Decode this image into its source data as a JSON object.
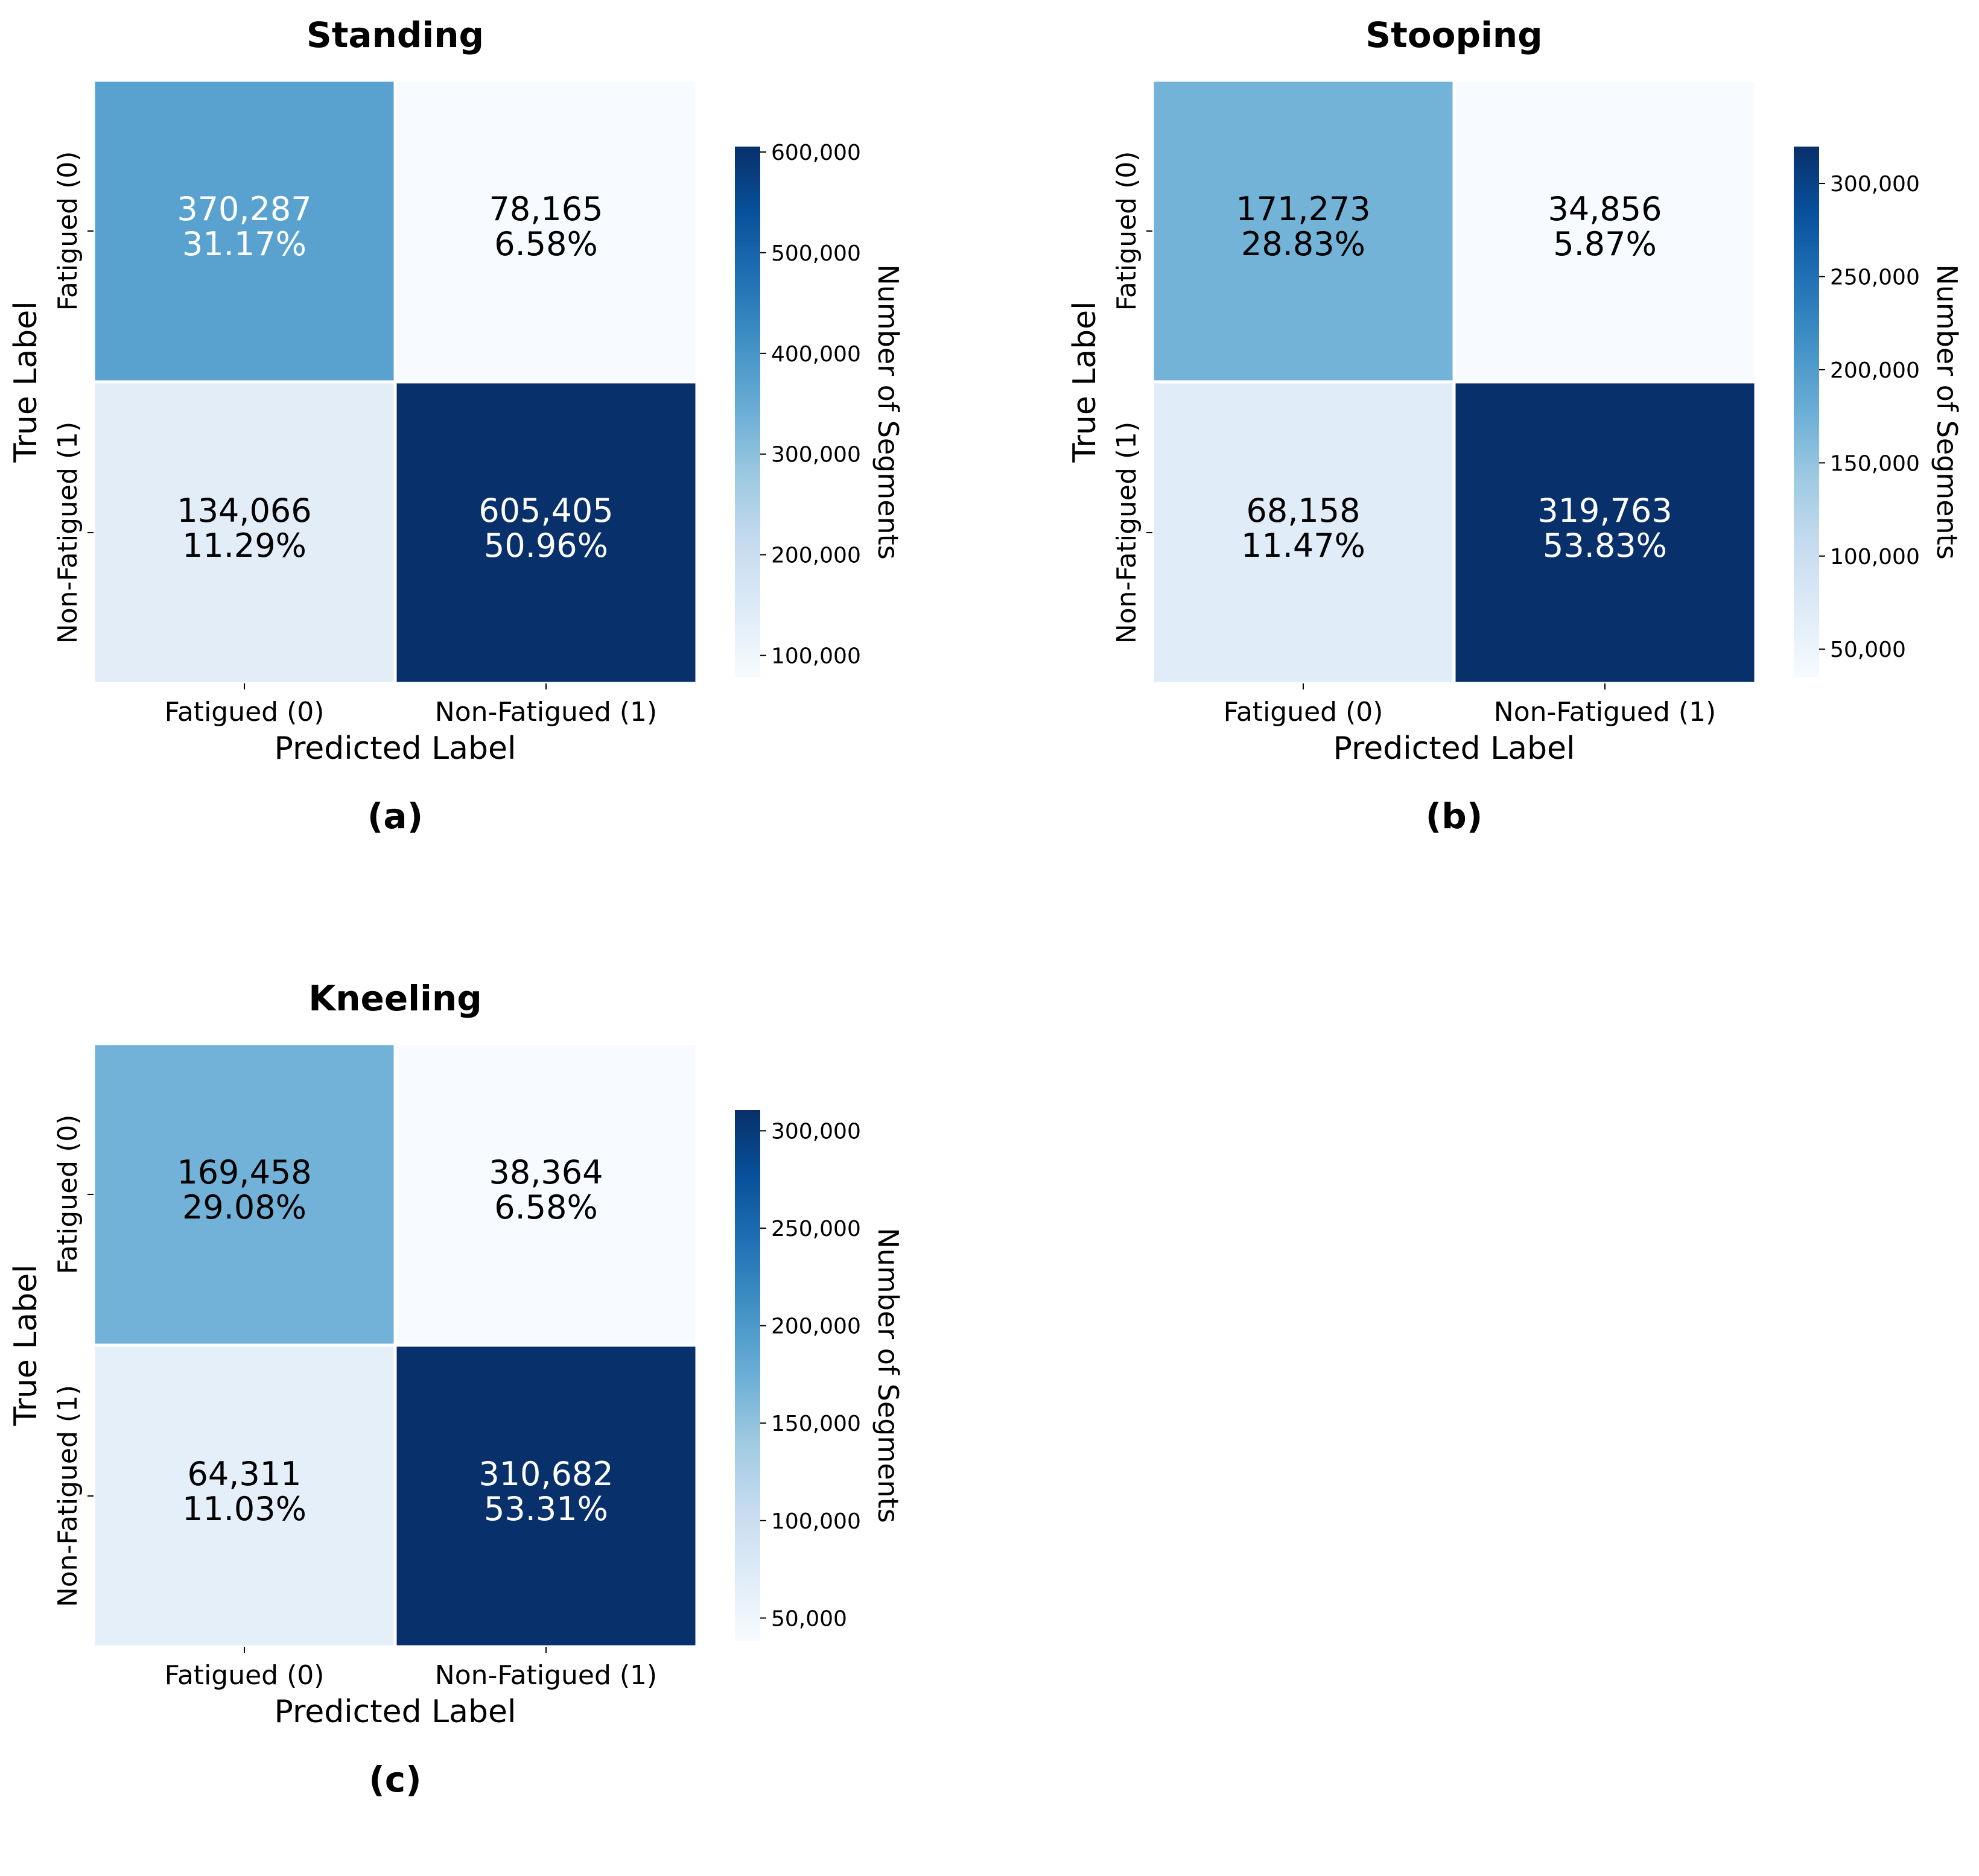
{
  "chart_data": [
    {
      "type": "heatmap",
      "title": "Standing",
      "panel": "(a)",
      "xlabel": "Predicted Label",
      "ylabel": "True Label",
      "x_categories": [
        "Fatigued (0)",
        "Non-Fatigued (1)"
      ],
      "y_categories": [
        "Fatigued (0)",
        "Non-Fatigued (1)"
      ],
      "values": [
        [
          370287,
          78165
        ],
        [
          134066,
          605405
        ]
      ],
      "counts": [
        [
          "370,287",
          "78,165"
        ],
        [
          "134,066",
          "605,405"
        ]
      ],
      "percentages": [
        [
          "31.17%",
          "6.58%"
        ],
        [
          "11.29%",
          "50.96%"
        ]
      ],
      "colorbar": {
        "label": "Number of Segments",
        "range": [
          78165,
          605405
        ],
        "ticks": [
          100000,
          200000,
          300000,
          400000,
          500000,
          600000
        ],
        "tick_labels": [
          "100,000",
          "200,000",
          "300,000",
          "400,000",
          "500,000",
          "600,000"
        ],
        "colormap": "Blues"
      }
    },
    {
      "type": "heatmap",
      "title": "Stooping",
      "panel": "(b)",
      "xlabel": "Predicted Label",
      "ylabel": "True Label",
      "x_categories": [
        "Fatigued (0)",
        "Non-Fatigued (1)"
      ],
      "y_categories": [
        "Fatigued (0)",
        "Non-Fatigued (1)"
      ],
      "values": [
        [
          171273,
          34856
        ],
        [
          68158,
          319763
        ]
      ],
      "counts": [
        [
          "171,273",
          "34,856"
        ],
        [
          "68,158",
          "319,763"
        ]
      ],
      "percentages": [
        [
          "28.83%",
          "5.87%"
        ],
        [
          "11.47%",
          "53.83%"
        ]
      ],
      "colorbar": {
        "label": "Number of Segments",
        "range": [
          34856,
          319763
        ],
        "ticks": [
          50000,
          100000,
          150000,
          200000,
          250000,
          300000
        ],
        "tick_labels": [
          "50,000",
          "100,000",
          "150,000",
          "200,000",
          "250,000",
          "300,000"
        ],
        "colormap": "Blues"
      }
    },
    {
      "type": "heatmap",
      "title": "Kneeling",
      "panel": "(c)",
      "xlabel": "Predicted Label",
      "ylabel": "True Label",
      "x_categories": [
        "Fatigued (0)",
        "Non-Fatigued (1)"
      ],
      "y_categories": [
        "Fatigued (0)",
        "Non-Fatigued (1)"
      ],
      "values": [
        [
          169458,
          38364
        ],
        [
          64311,
          310682
        ]
      ],
      "counts": [
        [
          "169,458",
          "38,364"
        ],
        [
          "64,311",
          "310,682"
        ]
      ],
      "percentages": [
        [
          "29.08%",
          "6.58%"
        ],
        [
          "11.03%",
          "53.31%"
        ]
      ],
      "colorbar": {
        "label": "Number of Segments",
        "range": [
          38364,
          310682
        ],
        "ticks": [
          50000,
          100000,
          150000,
          200000,
          250000,
          300000
        ],
        "tick_labels": [
          "50,000",
          "100,000",
          "150,000",
          "200,000",
          "250,000",
          "300,000"
        ],
        "colormap": "Blues"
      }
    }
  ]
}
